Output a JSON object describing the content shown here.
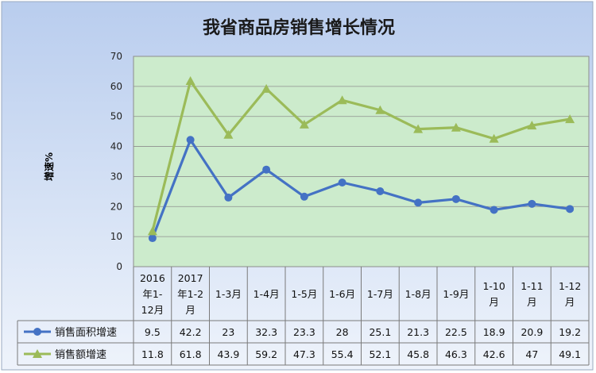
{
  "chart_data": {
    "type": "line",
    "title": "我省商品房销售增长情况",
    "ylabel": "增速%",
    "xlabel": "",
    "ylim": [
      0,
      70
    ],
    "yticks": [
      0,
      10,
      20,
      30,
      40,
      50,
      60,
      70
    ],
    "grid": true,
    "legend": "in data table, left",
    "data_table": true,
    "categories": [
      [
        "2016",
        "年1-",
        "12月"
      ],
      [
        "2017",
        "年1-2",
        "月"
      ],
      [
        "1-3月"
      ],
      [
        "1-4月"
      ],
      [
        "1-5月"
      ],
      [
        "1-6月"
      ],
      [
        "1-7月"
      ],
      [
        "1-8月"
      ],
      [
        "1-9月"
      ],
      [
        "1-10",
        "月"
      ],
      [
        "1-11",
        "月"
      ],
      [
        "1-12",
        "月"
      ]
    ],
    "series": [
      {
        "name": "销售面积增速",
        "marker": "circle",
        "color": "#4472C4",
        "values": [
          9.5,
          42.2,
          23,
          32.3,
          23.3,
          28,
          25.1,
          21.3,
          22.5,
          18.9,
          20.9,
          19.2
        ],
        "labels": [
          "9.5",
          "42.2",
          "23",
          "32.3",
          "23.3",
          "28",
          "25.1",
          "21.3",
          "22.5",
          "18.9",
          "20.9",
          "19.2"
        ]
      },
      {
        "name": "销售额增速",
        "marker": "triangle",
        "color": "#9BBB59",
        "values": [
          11.8,
          61.8,
          43.9,
          59.2,
          47.3,
          55.4,
          52.1,
          45.8,
          46.3,
          42.6,
          47,
          49.1
        ],
        "labels": [
          "11.8",
          "61.8",
          "43.9",
          "59.2",
          "47.3",
          "55.4",
          "52.1",
          "45.8",
          "46.3",
          "42.6",
          "47",
          "49.1"
        ]
      }
    ],
    "colors": {
      "plot_bg": "#CCEBCC",
      "frame_bg_top": "#B9CDEE",
      "frame_bg_bottom": "#EAF1FB"
    }
  }
}
